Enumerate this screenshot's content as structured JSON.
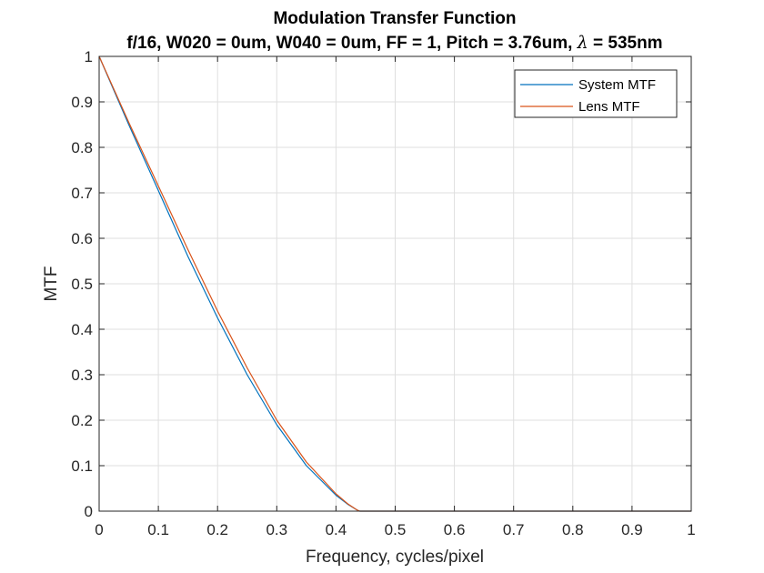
{
  "chart_data": {
    "type": "line",
    "title": "Modulation Transfer Function",
    "subtitle_parts": {
      "before_symbol": "f/16, W020 = 0um, W040 = 0um, FF = 1, Pitch = 3.76um, ",
      "symbol": "λ",
      "after_symbol": " = 535nm"
    },
    "xlabel": "Frequency, cycles/pixel",
    "ylabel": "MTF",
    "xlim": [
      0,
      1
    ],
    "ylim": [
      0,
      1
    ],
    "x_ticks": [
      "0",
      "0.1",
      "0.2",
      "0.3",
      "0.4",
      "0.5",
      "0.6",
      "0.7",
      "0.8",
      "0.9",
      "1"
    ],
    "y_ticks": [
      "0",
      "0.1",
      "0.2",
      "0.3",
      "0.4",
      "0.5",
      "0.6",
      "0.7",
      "0.8",
      "0.9",
      "1"
    ],
    "grid": true,
    "legend_position": "top-right",
    "series": [
      {
        "name": "System MTF",
        "color": "#0072BD",
        "x": [
          0,
          0.05,
          0.1,
          0.15,
          0.2,
          0.25,
          0.3,
          0.35,
          0.4,
          0.42,
          0.435,
          0.44,
          0.5,
          0.6,
          0.7,
          0.8,
          0.9,
          1
        ],
        "y": [
          1,
          0.85,
          0.705,
          0.56,
          0.425,
          0.3,
          0.19,
          0.1,
          0.035,
          0.015,
          0.003,
          0,
          0,
          0,
          0,
          0,
          0,
          0
        ]
      },
      {
        "name": "Lens MTF",
        "color": "#D95319",
        "x": [
          0,
          0.05,
          0.1,
          0.15,
          0.2,
          0.25,
          0.3,
          0.35,
          0.4,
          0.42,
          0.435,
          0.44,
          0.5,
          0.6,
          0.7,
          0.8,
          0.9,
          1
        ],
        "y": [
          1,
          0.855,
          0.715,
          0.575,
          0.44,
          0.315,
          0.2,
          0.108,
          0.038,
          0.016,
          0.003,
          0,
          0,
          0,
          0,
          0,
          0,
          0
        ]
      }
    ]
  }
}
